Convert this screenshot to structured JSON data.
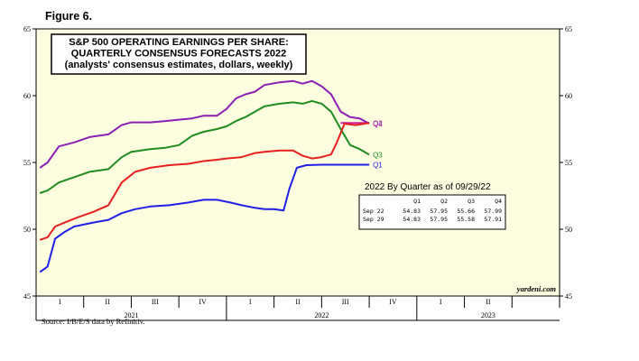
{
  "figure_label": "Figure 6.",
  "source": "Source: I/B/E/S data by Refinitiv.",
  "watermark": "yardeni.com",
  "chart_data": {
    "type": "line",
    "title_lines": [
      "S&P 500 OPERATING EARNINGS PER SHARE:",
      "QUARTERLY CONSENSUS FORECASTS 2022",
      "(analysts' consensus estimates, dollars, weekly)"
    ],
    "ylim": [
      45,
      65
    ],
    "yticks": [
      45,
      50,
      55,
      60,
      65
    ],
    "xlim": [
      2021.0,
      2023.75
    ],
    "quarter_ticks": [
      {
        "label": "I",
        "x": 2021.125
      },
      {
        "label": "II",
        "x": 2021.375
      },
      {
        "label": "III",
        "x": 2021.625
      },
      {
        "label": "IV",
        "x": 2021.875
      },
      {
        "label": "I",
        "x": 2022.125
      },
      {
        "label": "II",
        "x": 2022.375
      },
      {
        "label": "III",
        "x": 2022.625
      },
      {
        "label": "IV",
        "x": 2022.875
      },
      {
        "label": "I",
        "x": 2023.125
      },
      {
        "label": "II",
        "x": 2023.375
      }
    ],
    "years": [
      {
        "label": "2021",
        "x": 2021.5
      },
      {
        "label": "2022",
        "x": 2022.5
      },
      {
        "label": "2023",
        "x": 2023.375
      }
    ],
    "background": "#fdfde0",
    "series": [
      {
        "name": "Q1",
        "color": "#1f1fe6",
        "label_value": 54.83,
        "points": [
          [
            2021.02,
            46.8
          ],
          [
            2021.06,
            47.2
          ],
          [
            2021.1,
            49.3
          ],
          [
            2021.15,
            49.8
          ],
          [
            2021.2,
            50.2
          ],
          [
            2021.3,
            50.5
          ],
          [
            2021.38,
            50.7
          ],
          [
            2021.45,
            51.2
          ],
          [
            2021.52,
            51.5
          ],
          [
            2021.6,
            51.7
          ],
          [
            2021.7,
            51.8
          ],
          [
            2021.8,
            52.0
          ],
          [
            2021.88,
            52.2
          ],
          [
            2021.95,
            52.2
          ],
          [
            2022.02,
            52.0
          ],
          [
            2022.08,
            51.8
          ],
          [
            2022.15,
            51.6
          ],
          [
            2022.2,
            51.5
          ],
          [
            2022.25,
            51.5
          ],
          [
            2022.3,
            51.4
          ],
          [
            2022.33,
            53.0
          ],
          [
            2022.37,
            54.6
          ],
          [
            2022.42,
            54.8
          ],
          [
            2022.5,
            54.83
          ],
          [
            2022.6,
            54.83
          ],
          [
            2022.75,
            54.83
          ]
        ]
      },
      {
        "name": "Q2",
        "color": "#cc1f99",
        "label_value": 57.95,
        "points": [
          [
            2022.6,
            57.95
          ],
          [
            2022.75,
            57.95
          ]
        ]
      },
      {
        "name": "Q3",
        "color": "#1f8c1f",
        "label_value": 55.58,
        "points": [
          [
            2021.02,
            52.7
          ],
          [
            2021.06,
            52.9
          ],
          [
            2021.12,
            53.5
          ],
          [
            2021.2,
            53.9
          ],
          [
            2021.28,
            54.3
          ],
          [
            2021.38,
            54.5
          ],
          [
            2021.45,
            55.4
          ],
          [
            2021.5,
            55.8
          ],
          [
            2021.55,
            55.9
          ],
          [
            2021.6,
            56.0
          ],
          [
            2021.68,
            56.1
          ],
          [
            2021.75,
            56.3
          ],
          [
            2021.82,
            57.0
          ],
          [
            2021.88,
            57.3
          ],
          [
            2021.95,
            57.5
          ],
          [
            2022.0,
            57.7
          ],
          [
            2022.05,
            58.1
          ],
          [
            2022.1,
            58.4
          ],
          [
            2022.15,
            58.8
          ],
          [
            2022.2,
            59.2
          ],
          [
            2022.28,
            59.4
          ],
          [
            2022.35,
            59.5
          ],
          [
            2022.4,
            59.4
          ],
          [
            2022.45,
            59.6
          ],
          [
            2022.5,
            59.4
          ],
          [
            2022.55,
            58.8
          ],
          [
            2022.6,
            57.5
          ],
          [
            2022.65,
            56.3
          ],
          [
            2022.7,
            56.0
          ],
          [
            2022.75,
            55.58
          ]
        ]
      },
      {
        "name": "Q4",
        "color": "#8a1fb3",
        "label_value": 57.91,
        "points": [
          [
            2021.02,
            54.6
          ],
          [
            2021.06,
            55.0
          ],
          [
            2021.12,
            56.2
          ],
          [
            2021.2,
            56.5
          ],
          [
            2021.28,
            56.9
          ],
          [
            2021.38,
            57.1
          ],
          [
            2021.45,
            57.8
          ],
          [
            2021.5,
            58.0
          ],
          [
            2021.6,
            58.0
          ],
          [
            2021.68,
            58.1
          ],
          [
            2021.75,
            58.2
          ],
          [
            2021.82,
            58.3
          ],
          [
            2021.88,
            58.5
          ],
          [
            2021.95,
            58.5
          ],
          [
            2022.0,
            59.0
          ],
          [
            2022.05,
            59.8
          ],
          [
            2022.1,
            60.1
          ],
          [
            2022.15,
            60.3
          ],
          [
            2022.2,
            60.8
          ],
          [
            2022.28,
            61.0
          ],
          [
            2022.35,
            61.1
          ],
          [
            2022.4,
            60.9
          ],
          [
            2022.45,
            61.1
          ],
          [
            2022.5,
            60.7
          ],
          [
            2022.55,
            60.1
          ],
          [
            2022.6,
            58.8
          ],
          [
            2022.65,
            58.4
          ],
          [
            2022.7,
            58.3
          ],
          [
            2022.75,
            57.91
          ]
        ]
      },
      {
        "name": "Q2 (alt)",
        "color": "#e61f1f",
        "label_value": 57.95,
        "points": [
          [
            2021.02,
            49.2
          ],
          [
            2021.06,
            49.4
          ],
          [
            2021.1,
            50.2
          ],
          [
            2021.15,
            50.5
          ],
          [
            2021.22,
            50.9
          ],
          [
            2021.3,
            51.3
          ],
          [
            2021.38,
            51.8
          ],
          [
            2021.45,
            53.5
          ],
          [
            2021.52,
            54.3
          ],
          [
            2021.6,
            54.6
          ],
          [
            2021.7,
            54.8
          ],
          [
            2021.8,
            54.9
          ],
          [
            2021.88,
            55.1
          ],
          [
            2021.95,
            55.2
          ],
          [
            2022.0,
            55.3
          ],
          [
            2022.08,
            55.4
          ],
          [
            2022.15,
            55.7
          ],
          [
            2022.2,
            55.8
          ],
          [
            2022.28,
            55.9
          ],
          [
            2022.35,
            55.9
          ],
          [
            2022.4,
            55.5
          ],
          [
            2022.45,
            55.3
          ],
          [
            2022.5,
            55.4
          ],
          [
            2022.55,
            55.6
          ],
          [
            2022.58,
            56.5
          ],
          [
            2022.62,
            57.9
          ],
          [
            2022.68,
            57.8
          ],
          [
            2022.75,
            57.95
          ]
        ]
      }
    ],
    "inset": {
      "title": "2022 By Quarter as of 09/29/22",
      "columns": [
        "",
        "Q1",
        "Q2",
        "Q3",
        "Q4"
      ],
      "rows": [
        [
          "Sep 22",
          "54.83",
          "57.95",
          "55.66",
          "57.99"
        ],
        [
          "Sep 29",
          "54.83",
          "57.95",
          "55.58",
          "57.91"
        ]
      ]
    }
  }
}
